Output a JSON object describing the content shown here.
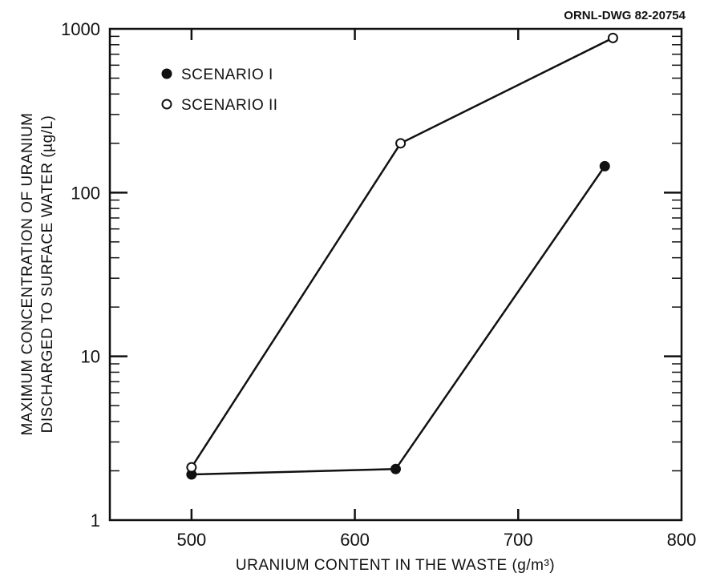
{
  "chart_data": {
    "type": "line",
    "drawing_number": "ORNL-DWG 82-20754",
    "xlabel": "URANIUM CONTENT IN THE WASTE (g/m³)",
    "ylabel_line1": "MAXIMUM CONCENTRATION OF URANIUM",
    "ylabel_line2": "DISCHARGED TO SURFACE WATER (µg/L)",
    "xlim": [
      450,
      800
    ],
    "ylim": [
      1,
      1000
    ],
    "y_scale": "log",
    "x_ticks": [
      500,
      600,
      700,
      800
    ],
    "x_tick_labels": [
      "500",
      "600",
      "700",
      "800"
    ],
    "y_ticks": [
      1,
      10,
      100,
      1000
    ],
    "y_tick_labels": [
      "1",
      "10",
      "100",
      "1000"
    ],
    "grid": false,
    "legend_position": "top-left",
    "series": [
      {
        "name": "SCENARIO I",
        "marker": "filled-circle",
        "color": "#111111",
        "x": [
          500,
          625,
          753
        ],
        "y": [
          1.9,
          2.05,
          145
        ]
      },
      {
        "name": "SCENARIO II",
        "marker": "open-circle",
        "color": "#111111",
        "x": [
          500,
          628,
          758
        ],
        "y": [
          2.1,
          200,
          880
        ]
      }
    ]
  }
}
